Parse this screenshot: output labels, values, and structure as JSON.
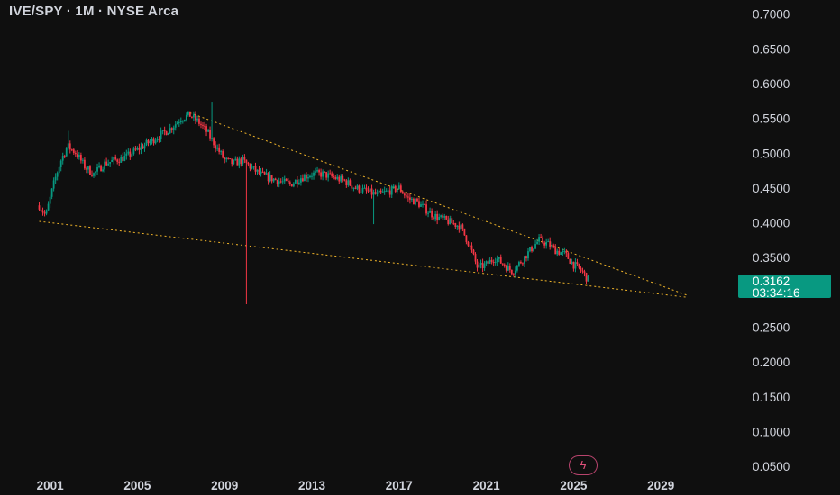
{
  "header": {
    "title": "IVE/SPY · 1M · NYSE Arca"
  },
  "price_badge": {
    "price": "0.3162",
    "countdown": "03:34:16"
  },
  "icons": {
    "flash": "lightning-icon"
  },
  "colors": {
    "up": "#089981",
    "down": "#f23645",
    "trendline": "#f0b429",
    "background": "#0f0f0f",
    "text": "#d1d4dc"
  },
  "chart_data": {
    "type": "candlestick",
    "title": "IVE/SPY · 1M · NYSE Arca",
    "y_ticks": [
      "0.0500",
      "0.1000",
      "0.1500",
      "0.2000",
      "0.2500",
      "0.3000",
      "0.3500",
      "0.4000",
      "0.4500",
      "0.5000",
      "0.5500",
      "0.6000",
      "0.6500",
      "0.7000"
    ],
    "x_ticks": [
      "2001",
      "2005",
      "2009",
      "2013",
      "2017",
      "2021",
      "2025",
      "2029"
    ],
    "ylim": [
      0.04,
      0.71
    ],
    "grid": false,
    "last_price": 0.3162,
    "series": [
      {
        "name": "price",
        "points": [
          {
            "t": "2000.5",
            "v": 0.425
          },
          {
            "t": "2000.8",
            "v": 0.41
          },
          {
            "t": "2001.2",
            "v": 0.46
          },
          {
            "t": "2001.5",
            "v": 0.49
          },
          {
            "t": "2001.8",
            "v": 0.51
          },
          {
            "t": "2002.2",
            "v": 0.5
          },
          {
            "t": "2002.6",
            "v": 0.48
          },
          {
            "t": "2003.0",
            "v": 0.47
          },
          {
            "t": "2003.5",
            "v": 0.485
          },
          {
            "t": "2004.0",
            "v": 0.49
          },
          {
            "t": "2004.5",
            "v": 0.495
          },
          {
            "t": "2005.0",
            "v": 0.505
          },
          {
            "t": "2005.5",
            "v": 0.515
          },
          {
            "t": "2006.0",
            "v": 0.525
          },
          {
            "t": "2006.5",
            "v": 0.535
          },
          {
            "t": "2007.0",
            "v": 0.55
          },
          {
            "t": "2007.4",
            "v": 0.555
          },
          {
            "t": "2007.8",
            "v": 0.545
          },
          {
            "t": "2008.2",
            "v": 0.53
          },
          {
            "t": "2008.6",
            "v": 0.51
          },
          {
            "t": "2009.0",
            "v": 0.49
          },
          {
            "t": "2009.4",
            "v": 0.485
          },
          {
            "t": "2009.8",
            "v": 0.49
          },
          {
            "t": "2010.2",
            "v": 0.48
          },
          {
            "t": "2010.6",
            "v": 0.47
          },
          {
            "t": "2011.0",
            "v": 0.465
          },
          {
            "t": "2011.5",
            "v": 0.46
          },
          {
            "t": "2012.0",
            "v": 0.455
          },
          {
            "t": "2012.5",
            "v": 0.465
          },
          {
            "t": "2013.0",
            "v": 0.47
          },
          {
            "t": "2013.5",
            "v": 0.47
          },
          {
            "t": "2014.0",
            "v": 0.465
          },
          {
            "t": "2014.5",
            "v": 0.46
          },
          {
            "t": "2015.0",
            "v": 0.45
          },
          {
            "t": "2015.5",
            "v": 0.445
          },
          {
            "t": "2016.0",
            "v": 0.44
          },
          {
            "t": "2016.5",
            "v": 0.445
          },
          {
            "t": "2017.0",
            "v": 0.45
          },
          {
            "t": "2017.4",
            "v": 0.435
          },
          {
            "t": "2017.8",
            "v": 0.43
          },
          {
            "t": "2018.2",
            "v": 0.42
          },
          {
            "t": "2018.6",
            "v": 0.41
          },
          {
            "t": "2019.0",
            "v": 0.405
          },
          {
            "t": "2019.4",
            "v": 0.4
          },
          {
            "t": "2019.8",
            "v": 0.395
          },
          {
            "t": "2020.2",
            "v": 0.37
          },
          {
            "t": "2020.6",
            "v": 0.335
          },
          {
            "t": "2021.0",
            "v": 0.34
          },
          {
            "t": "2021.4",
            "v": 0.35
          },
          {
            "t": "2021.8",
            "v": 0.34
          },
          {
            "t": "2022.2",
            "v": 0.33
          },
          {
            "t": "2022.6",
            "v": 0.345
          },
          {
            "t": "2023.0",
            "v": 0.36
          },
          {
            "t": "2023.4",
            "v": 0.375
          },
          {
            "t": "2023.8",
            "v": 0.37
          },
          {
            "t": "2024.2",
            "v": 0.36
          },
          {
            "t": "2024.6",
            "v": 0.355
          },
          {
            "t": "2025.0",
            "v": 0.34
          },
          {
            "t": "2025.4",
            "v": 0.33
          },
          {
            "t": "2025.7",
            "v": 0.3162
          }
        ]
      }
    ],
    "trendlines": [
      {
        "from": {
          "t": "2000.5",
          "v": 0.402
        },
        "to": {
          "t": "2030.2",
          "v": 0.293
        }
      },
      {
        "from": {
          "t": "2007.4",
          "v": 0.558
        },
        "to": {
          "t": "2030.2",
          "v": 0.296
        }
      }
    ]
  }
}
